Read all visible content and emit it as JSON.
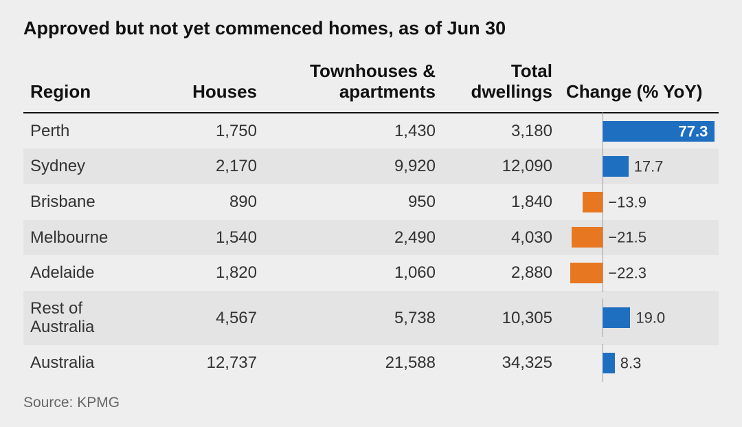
{
  "title": "Approved but not yet commenced homes, as of Jun 30",
  "source": "Source: KPMG",
  "columns": {
    "region": "Region",
    "houses": "Houses",
    "townhouses": "Townhouses & apartments",
    "total": "Total dwellings",
    "change": "Change (% YoY)"
  },
  "change_axis": {
    "min": -30,
    "max": 80,
    "zero_fraction": 0.2727
  },
  "colors": {
    "positive": "#1f6fc1",
    "negative": "#e87722",
    "axis": "#9a9a9a",
    "stripe": "#e4e4e4",
    "background": "#eeeeee",
    "label_on_bar": "#ffffff",
    "label_off_bar": "#333333",
    "text": "#111111"
  },
  "rows": [
    {
      "region": "Perth",
      "houses": "1,750",
      "town": "1,430",
      "total": "3,180",
      "change": 77.3,
      "change_label": "77.3",
      "label_inside": true
    },
    {
      "region": "Sydney",
      "houses": "2,170",
      "town": "9,920",
      "total": "12,090",
      "change": 17.7,
      "change_label": "17.7",
      "label_inside": false
    },
    {
      "region": "Brisbane",
      "houses": "890",
      "town": "950",
      "total": "1,840",
      "change": -13.9,
      "change_label": "−13.9",
      "label_inside": false
    },
    {
      "region": "Melbourne",
      "houses": "1,540",
      "town": "2,490",
      "total": "4,030",
      "change": -21.5,
      "change_label": "−21.5",
      "label_inside": false
    },
    {
      "region": "Adelaide",
      "houses": "1,820",
      "town": "1,060",
      "total": "2,880",
      "change": -22.3,
      "change_label": "−22.3",
      "label_inside": false
    },
    {
      "region": "Rest of Australia",
      "houses": "4,567",
      "town": "5,738",
      "total": "10,305",
      "change": 19.0,
      "change_label": "19.0",
      "label_inside": false
    },
    {
      "region": "Australia",
      "houses": "12,737",
      "town": "21,588",
      "total": "34,325",
      "change": 8.3,
      "change_label": "8.3",
      "label_inside": false
    }
  ]
}
